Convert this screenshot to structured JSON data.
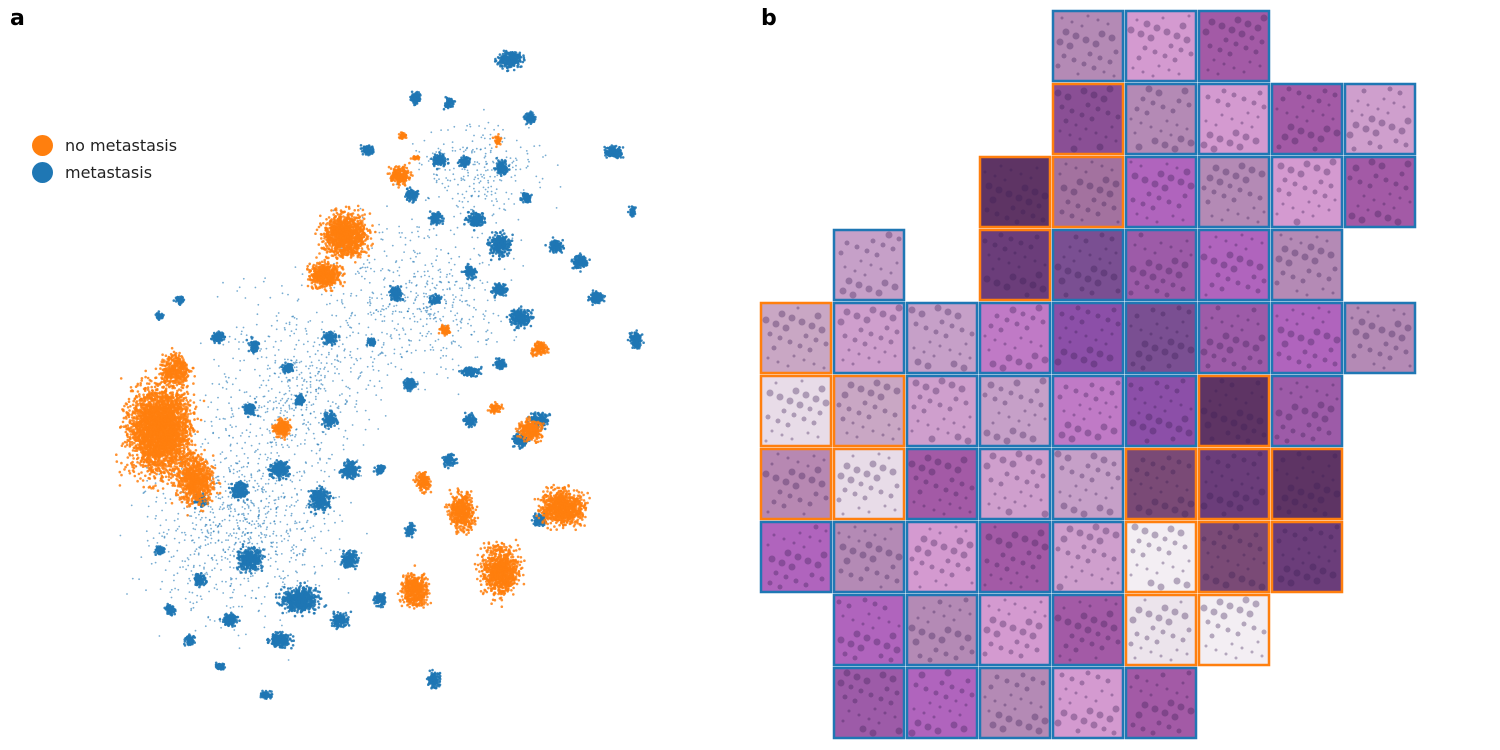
{
  "panels": {
    "a": "a",
    "b": "b"
  },
  "colors": {
    "no_metastasis": "#ff7f0e",
    "metastasis": "#1f77b4"
  },
  "chart_data": [
    {
      "type": "scatter",
      "panel": "a",
      "description_of_content": "t-SNE embedding of patches",
      "legend": [
        {
          "label": "no metastasis",
          "color": "#ff7f0e"
        },
        {
          "label": "metastasis",
          "color": "#1f77b4"
        }
      ],
      "axes_visible": false,
      "legend_placement": "top-left"
    },
    {
      "type": "table",
      "panel": "b",
      "tile_classes_by_row": [
        [
          "",
          "",
          "",
          "",
          "metastasis",
          "metastasis",
          "metastasis",
          "",
          ""
        ],
        [
          "",
          "",
          "",
          "",
          "no metastasis",
          "metastasis",
          "metastasis",
          "metastasis",
          "metastasis"
        ],
        [
          "",
          "",
          "",
          "no metastasis",
          "no metastasis",
          "metastasis",
          "metastasis",
          "metastasis",
          "metastasis"
        ],
        [
          "",
          "metastasis",
          "",
          "no metastasis",
          "metastasis",
          "metastasis",
          "metastasis",
          "metastasis",
          ""
        ],
        [
          "no metastasis",
          "metastasis",
          "metastasis",
          "metastasis",
          "metastasis",
          "metastasis",
          "metastasis",
          "metastasis",
          "metastasis"
        ],
        [
          "no metastasis",
          "no metastasis",
          "metastasis",
          "metastasis",
          "metastasis",
          "metastasis",
          "no metastasis",
          "metastasis",
          ""
        ],
        [
          "no metastasis",
          "no metastasis",
          "metastasis",
          "metastasis",
          "metastasis",
          "no metastasis",
          "no metastasis",
          "no metastasis",
          ""
        ],
        [
          "metastasis",
          "metastasis",
          "metastasis",
          "metastasis",
          "metastasis",
          "no metastasis",
          "no metastasis",
          "no metastasis",
          ""
        ],
        [
          "",
          "metastasis",
          "metastasis",
          "metastasis",
          "metastasis",
          "no metastasis",
          "no metastasis",
          "",
          ""
        ],
        [
          "",
          "metastasis",
          "metastasis",
          "metastasis",
          "metastasis",
          "metastasis",
          "",
          "",
          ""
        ]
      ]
    }
  ]
}
